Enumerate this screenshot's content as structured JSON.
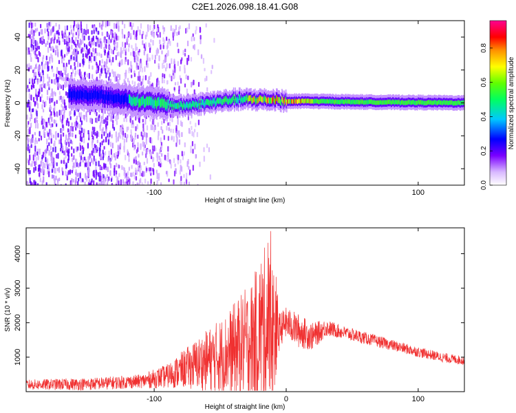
{
  "chart_data": [
    {
      "type": "heatmap",
      "title": "C2E1.2026.098.18.41.G08",
      "xlabel": "Height of straight line (km)",
      "ylabel": "Frequency (Hz)",
      "xlim": [
        -197,
        135
      ],
      "ylim": [
        -50,
        50
      ],
      "xticks": [
        -100,
        0,
        100
      ],
      "xtick_labels": [
        "-100",
        "",
        "100"
      ],
      "yticks": [
        -40,
        -20,
        0,
        20,
        40
      ],
      "ytick_labels": [
        "-40",
        "-20",
        "0",
        "20",
        "40"
      ],
      "colorbar": {
        "label": "Normalized spectral amplitude",
        "range": [
          0,
          0.96
        ],
        "ticks": [
          0,
          0.2,
          0.4,
          0.6,
          0.8
        ],
        "tick_labels": [
          "0.0",
          "0.2",
          "0.4",
          "0.6",
          "0.8"
        ]
      },
      "description_features": {
        "noise_region_x": [
          -197,
          -70
        ],
        "ridge": [
          {
            "x": -150,
            "f": 5
          },
          {
            "x": -120,
            "f": 2
          },
          {
            "x": -100,
            "f": 0
          },
          {
            "x": -80,
            "f": -2
          },
          {
            "x": -60,
            "f": 0
          },
          {
            "x": -40,
            "f": 2
          },
          {
            "x": -20,
            "f": 2
          },
          {
            "x": 0,
            "f": 1
          },
          {
            "x": 20,
            "f": 1
          },
          {
            "x": 60,
            "f": 0.5
          },
          {
            "x": 135,
            "f": 0
          }
        ]
      }
    },
    {
      "type": "line",
      "xlabel": "Height of straight line (km)",
      "ylabel": "SNR (10 * v/v)",
      "xlim": [
        -197,
        135
      ],
      "ylim": [
        0,
        4750
      ],
      "xticks": [
        -100,
        0,
        100
      ],
      "xtick_labels": [
        "-100",
        "0",
        "100"
      ],
      "yticks": [
        1000,
        2000,
        3000,
        4000
      ],
      "ytick_labels": [
        "1000",
        "2000",
        "3000",
        "4000"
      ],
      "series": [
        {
          "name": "SNR",
          "color": "#f03030",
          "envelope": [
            {
              "x": -197,
              "base": 200,
              "amp": 150
            },
            {
              "x": -150,
              "base": 220,
              "amp": 180
            },
            {
              "x": -110,
              "base": 300,
              "amp": 200
            },
            {
              "x": -90,
              "base": 450,
              "amp": 350
            },
            {
              "x": -75,
              "base": 700,
              "amp": 600
            },
            {
              "x": -60,
              "base": 900,
              "amp": 900
            },
            {
              "x": -45,
              "base": 1100,
              "amp": 1200
            },
            {
              "x": -35,
              "base": 1300,
              "amp": 1500
            },
            {
              "x": -25,
              "base": 1500,
              "amp": 1800
            },
            {
              "x": -18,
              "base": 1800,
              "amp": 2400
            },
            {
              "x": -12,
              "base": 1800,
              "amp": 2400
            },
            {
              "x": -8,
              "base": 1700,
              "amp": 1800
            },
            {
              "x": -5,
              "base": 1800,
              "amp": 500
            },
            {
              "x": 0,
              "base": 2000,
              "amp": 450
            },
            {
              "x": 10,
              "base": 1750,
              "amp": 500
            },
            {
              "x": 20,
              "base": 1600,
              "amp": 400
            },
            {
              "x": 30,
              "base": 1850,
              "amp": 250
            },
            {
              "x": 40,
              "base": 1750,
              "amp": 200
            },
            {
              "x": 60,
              "base": 1550,
              "amp": 180
            },
            {
              "x": 80,
              "base": 1350,
              "amp": 160
            },
            {
              "x": 100,
              "base": 1150,
              "amp": 150
            },
            {
              "x": 120,
              "base": 980,
              "amp": 140
            },
            {
              "x": 135,
              "base": 900,
              "amp": 130
            }
          ]
        }
      ]
    }
  ]
}
